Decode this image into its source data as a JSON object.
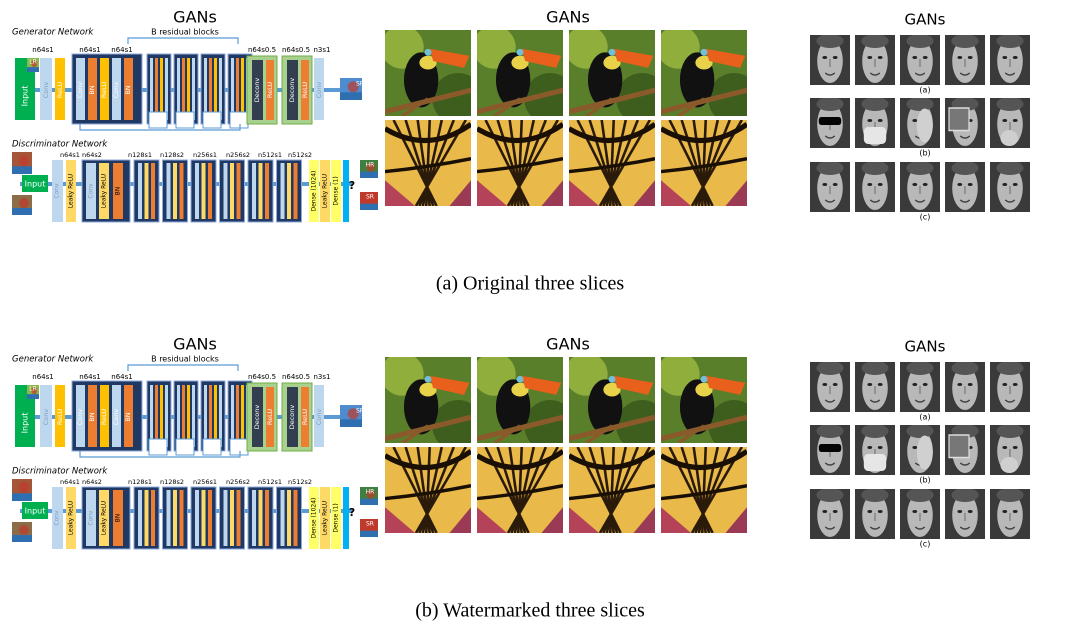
{
  "figures": [
    {
      "caption": "(a) Original three slices",
      "network": {
        "title": "GANs",
        "generator": {
          "name": "Generator Network",
          "blocks_label": "B residual blocks",
          "layer_labels": [
            "n64s1",
            "n64s1",
            "n64s1",
            "n64s0.5",
            "n64s0.5",
            "n3s1"
          ],
          "input": "Input",
          "input_tag": "LR",
          "output_tag": "SR",
          "block_texts": [
            "Conv",
            "ReLU",
            "Conv",
            "BN",
            "ReLU",
            "Conv",
            "BN",
            "Deconv",
            "ReLU",
            "Deconv",
            "ReLU",
            "Conv"
          ]
        },
        "discriminator": {
          "name": "Discriminator Network",
          "layer_labels": [
            "n64s1",
            "n64s2",
            "n128s1",
            "n128s2",
            "n256s1",
            "n256s2",
            "n512s1",
            "n512s2"
          ],
          "input": "Input",
          "block_texts": [
            "Conv",
            "Leaky ReLU",
            "Conv",
            "Leaky ReLU",
            "BN",
            "Dense (1024)",
            "Leaky ReLU",
            "Dense (1)"
          ],
          "outputs": [
            "HR",
            "SR"
          ],
          "question": "?"
        }
      },
      "images": {
        "title": "GANs"
      },
      "faces": {
        "title": "GANs",
        "row_labels": [
          "(a)",
          "(b)",
          "(c)"
        ]
      }
    },
    {
      "caption": "(b) Watermarked three slices",
      "network": {
        "title": "GANs",
        "generator": {
          "name": "Generator Network",
          "blocks_label": "B residual blocks",
          "layer_labels": [
            "n64s1",
            "n64s1",
            "n64s1",
            "n64s0.5",
            "n64s0.5",
            "n3s1"
          ],
          "input": "Input",
          "input_tag": "LR",
          "output_tag": "SR",
          "block_texts": [
            "Conv",
            "ReLU",
            "Conv",
            "BN",
            "ReLU",
            "Conv",
            "BN",
            "Deconv",
            "ReLU",
            "Deconv",
            "ReLU",
            "Conv"
          ]
        },
        "discriminator": {
          "name": "Discriminator Network",
          "layer_labels": [
            "n64s1",
            "n64s2",
            "n128s1",
            "n128s2",
            "n256s1",
            "n256s2",
            "n512s1",
            "n512s2"
          ],
          "input": "Input",
          "block_texts": [
            "Conv",
            "Leaky ReLU",
            "Conv",
            "Leaky ReLU",
            "BN",
            "Dense (1024)",
            "Leaky ReLU",
            "Dense (1)"
          ],
          "outputs": [
            "HR",
            "SR"
          ],
          "question": "?"
        }
      },
      "images": {
        "title": "GANs"
      },
      "faces": {
        "title": "GANs",
        "row_labels": [
          "(a)",
          "(b)",
          "(c)"
        ]
      }
    }
  ]
}
